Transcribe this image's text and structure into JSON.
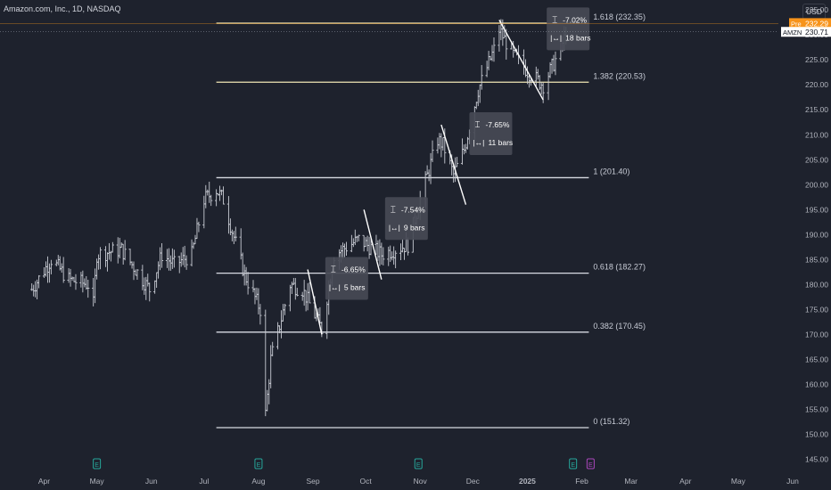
{
  "header": {
    "title": "Amazon.com, Inc., 1D, NASDAQ"
  },
  "currency_button": "USD",
  "price_tags": [
    {
      "label": "Pre",
      "value": "232.29",
      "color": "#f7931a"
    },
    {
      "label": "AMZN",
      "value": "230.71",
      "color": "#ffffff"
    }
  ],
  "colors": {
    "background": "#1e222d",
    "bars": "#c9ccd4",
    "fib_line": "#d8dbe3",
    "fib_highlight": "#f0e6b4",
    "pre_market": "#f7931a",
    "earnings_icon": "#26a69a",
    "earnings_next": "#ab47bc"
  },
  "chart_data": {
    "type": "ohlc",
    "series": [
      {
        "name": "AMZN",
        "interval": "1D"
      }
    ],
    "x_axis": {
      "ticks": [
        "Apr",
        "May",
        "Jun",
        "Jul",
        "Aug",
        "Sep",
        "Oct",
        "Nov",
        "Dec",
        "2025",
        "Feb",
        "Mar",
        "Apr",
        "May",
        "Jun"
      ]
    },
    "y_axis": {
      "ticks": [
        145,
        150,
        155,
        160,
        165,
        170,
        175,
        180,
        185,
        190,
        195,
        200,
        205,
        210,
        215,
        220,
        225,
        230,
        235
      ],
      "ylim": [
        144,
        237
      ]
    },
    "price_path": [
      [
        "2024-03-25",
        179
      ],
      [
        "2024-04-05",
        185
      ],
      [
        "2024-04-15",
        181
      ],
      [
        "2024-04-26",
        180
      ],
      [
        "2024-04-29",
        176
      ],
      [
        "2024-05-01",
        186
      ],
      [
        "2024-05-15",
        187
      ],
      [
        "2024-05-31",
        179
      ],
      [
        "2024-06-07",
        186
      ],
      [
        "2024-06-14",
        184
      ],
      [
        "2024-06-24",
        186
      ],
      [
        "2024-07-01",
        197
      ],
      [
        "2024-07-08",
        199
      ],
      [
        "2024-07-12",
        197
      ],
      [
        "2024-07-24",
        182
      ],
      [
        "2024-08-02",
        175
      ],
      [
        "2024-08-05",
        154
      ],
      [
        "2024-08-08",
        165
      ],
      [
        "2024-08-19",
        180
      ],
      [
        "2024-08-26",
        179
      ],
      [
        "2024-09-06",
        171
      ],
      [
        "2024-09-13",
        186
      ],
      [
        "2024-09-27",
        189
      ],
      [
        "2024-10-10",
        186
      ],
      [
        "2024-10-25",
        188
      ],
      [
        "2024-11-01",
        197
      ],
      [
        "2024-11-11",
        209
      ],
      [
        "2024-11-14",
        208
      ],
      [
        "2024-11-20",
        202
      ],
      [
        "2024-11-26",
        207
      ],
      [
        "2024-12-04",
        219
      ],
      [
        "2024-12-13",
        227
      ],
      [
        "2024-12-16",
        231
      ],
      [
        "2024-12-24",
        226
      ],
      [
        "2025-01-03",
        222
      ],
      [
        "2025-01-10",
        220
      ],
      [
        "2025-01-17",
        225
      ],
      [
        "2025-01-23",
        230
      ]
    ],
    "fib_levels": [
      {
        "ratio": "0",
        "price": 151.32,
        "label": "0 (151.32)"
      },
      {
        "ratio": "0.382",
        "price": 170.45,
        "label": "0.382 (170.45)"
      },
      {
        "ratio": "0.618",
        "price": 182.27,
        "label": "0.618 (182.27)"
      },
      {
        "ratio": "1",
        "price": 201.4,
        "label": "1 (201.40)"
      },
      {
        "ratio": "1.382",
        "price": 220.53,
        "label": "1.382 (220.53)"
      },
      {
        "ratio": "1.618",
        "price": 232.35,
        "label": "1.618 (232.35)"
      }
    ],
    "fib_range": {
      "start": "2024-07-08",
      "end": "2025-02-05"
    },
    "pullbacks": [
      {
        "from": [
          "2024-08-29",
          183
        ],
        "to": [
          "2024-09-06",
          170
        ],
        "percent": "-6.65%",
        "bars": "5 bars"
      },
      {
        "from": [
          "2024-09-30",
          195
        ],
        "to": [
          "2024-10-10",
          181
        ],
        "percent": "-7.54%",
        "bars": "9 bars"
      },
      {
        "from": [
          "2024-11-13",
          212
        ],
        "to": [
          "2024-11-27",
          196
        ],
        "percent": "-7.65%",
        "bars": "11 bars"
      },
      {
        "from": [
          "2024-12-16",
          233
        ],
        "to": [
          "2025-01-10",
          217
        ],
        "percent": "-7.02%",
        "bars": "18 bars"
      }
    ],
    "earnings_markers": [
      "2024-05-01",
      "2024-08-01",
      "2024-10-31",
      "2025-01-27",
      "2025-02-06"
    ]
  }
}
